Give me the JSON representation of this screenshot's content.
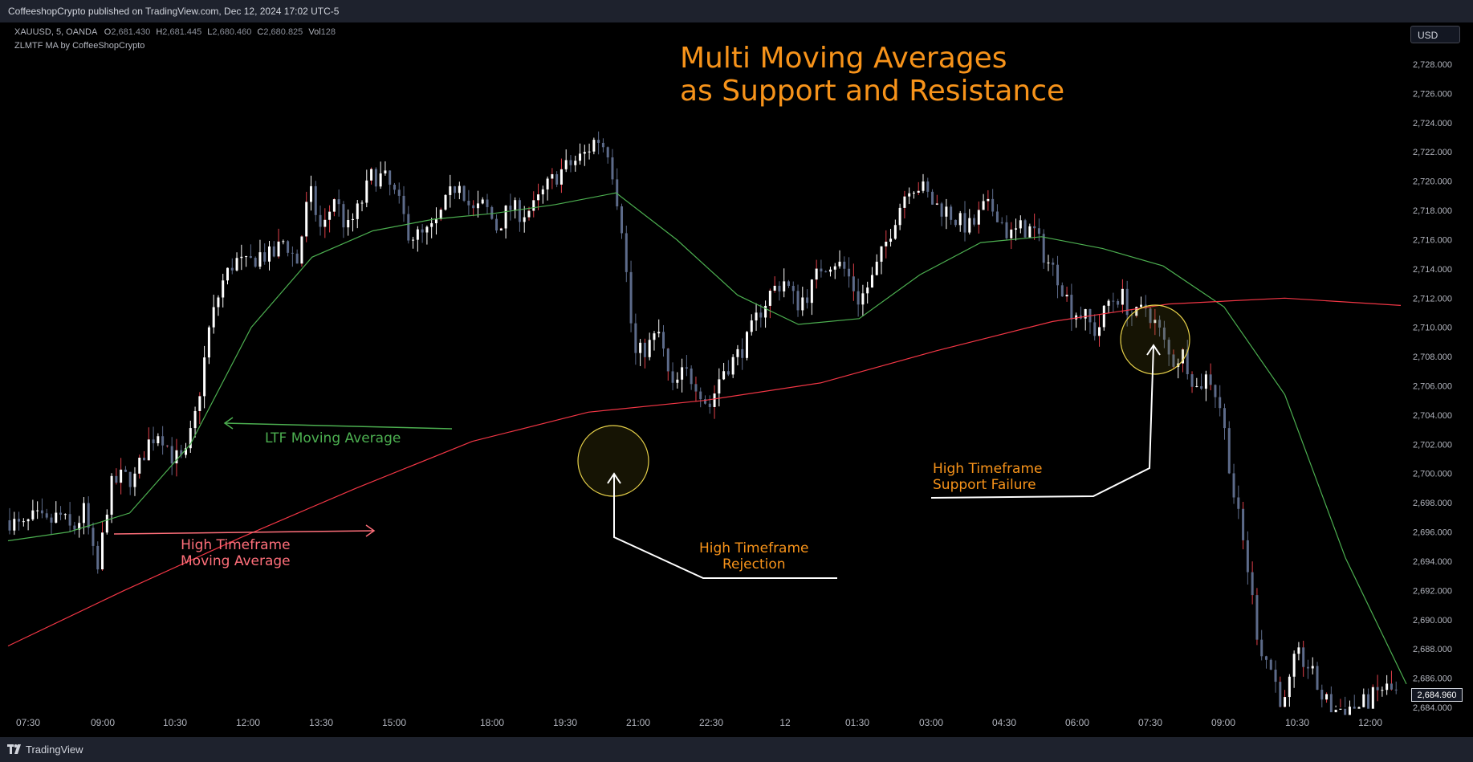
{
  "header": {
    "publisher": "CoffeeshopCrypto published on TradingView.com, Dec 12, 2024 17:02 UTC-5"
  },
  "legend": {
    "symbol": "XAUUSD, 5, OANDA",
    "o_label": "O",
    "o": "2,681.430",
    "h_label": "H",
    "h": "2,681.445",
    "l_label": "L",
    "l": "2,680.460",
    "c_label": "C",
    "c": "2,680.825",
    "vol_label": "Vol",
    "vol": "128",
    "indicator": "ZLMTF MA by CoffeeShopCrypto"
  },
  "currency": "USD",
  "footer": {
    "brand": "TradingView"
  },
  "colors": {
    "background": "#000000",
    "up": "#ffffff",
    "down": "#5d6b8a",
    "ltf_ma": "#4caf50",
    "htf_ma": "#f23645",
    "accent": "#f7931a"
  },
  "annotations": {
    "title_line1": "Multi Moving Averages",
    "title_line2": "as Support and Resistance",
    "ltf_label": "LTF Moving Average",
    "htf_line1": "High Timeframe",
    "htf_line2": "Moving Average",
    "rej_line1": "High Timeframe",
    "rej_line2": "Rejection",
    "fail_line1": "High Timeframe",
    "fail_line2": "Support Failure"
  },
  "chart_data": {
    "type": "candlestick",
    "symbol": "XAUUSD",
    "timeframe": "5",
    "xtick_labels": [
      "07:30",
      "09:00",
      "10:30",
      "12:00",
      "13:30",
      "15:00",
      "18:00",
      "19:30",
      "21:00",
      "22:30",
      "12",
      "01:30",
      "03:00",
      "04:30",
      "06:00",
      "07:30",
      "09:00",
      "10:30",
      "12:00"
    ],
    "ytick_labels": [
      "2,684.000",
      "2,686.000",
      "2,688.000",
      "2,690.000",
      "2,692.000",
      "2,694.000",
      "2,696.000",
      "2,698.000",
      "2,700.000",
      "2,702.000",
      "2,704.000",
      "2,706.000",
      "2,708.000",
      "2,710.000",
      "2,712.000",
      "2,714.000",
      "2,716.000",
      "2,718.000",
      "2,720.000",
      "2,722.000",
      "2,724.000",
      "2,726.000",
      "2,728.000"
    ],
    "yticks": [
      2684,
      2686,
      2688,
      2690,
      2692,
      2694,
      2696,
      2698,
      2700,
      2702,
      2704,
      2706,
      2708,
      2710,
      2712,
      2714,
      2716,
      2718,
      2720,
      2722,
      2724,
      2726,
      2728
    ],
    "ylim": [
      2683.7,
      2729.8
    ],
    "last_price": "2,684.960",
    "price_path": [
      2696.8,
      2696.2,
      2697.0,
      2696.5,
      2697.2,
      2696.0,
      2697.5,
      2693.0,
      2699.0,
      2699.8,
      2699.6,
      2702.0,
      2703.0,
      2701.2,
      2700.8,
      2704.5,
      2710.0,
      2713.0,
      2714.6,
      2714.2,
      2715.0,
      2714.8,
      2716.0,
      2714.4,
      2719.4,
      2716.4,
      2719.0,
      2716.6,
      2718.2,
      2720.4,
      2720.2,
      2718.8,
      2716.4,
      2716.2,
      2716.8,
      2718.6,
      2720.2,
      2717.8,
      2718.4,
      2716.8,
      2718.2,
      2717.8,
      2718.2,
      2719.6,
      2720.6,
      2721.2,
      2721.8,
      2723.0,
      2722.0,
      2717.0,
      2708.0,
      2708.6,
      2709.6,
      2705.6,
      2707.0,
      2706.2,
      2704.5,
      2707.0,
      2707.8,
      2709.0,
      2711.0,
      2712.5,
      2713.2,
      2711.6,
      2712.4,
      2714.2,
      2714.6,
      2713.8,
      2711.8,
      2713.2,
      2715.4,
      2717.8,
      2719.8,
      2719.6,
      2718.4,
      2718.0,
      2717.2,
      2716.8,
      2718.2,
      2718.0,
      2716.2,
      2716.8,
      2716.6,
      2714.6,
      2713.4,
      2711.2,
      2710.8,
      2709.6,
      2711.8,
      2712.2,
      2710.6,
      2711.4,
      2709.8,
      2707.6,
      2708.2,
      2705.8,
      2706.8,
      2704.4,
      2698.6,
      2694.2,
      2688.4,
      2686.6,
      2683.9,
      2687.6,
      2686.8,
      2684.8,
      2683.8,
      2684.0,
      2684.0,
      2684.6,
      2685.4,
      2684.96
    ],
    "series": [
      {
        "name": "LTF Moving Average",
        "values": [
          2695.4,
          2696.0,
          2697.3,
          2702.0,
          2710.0,
          2714.8,
          2716.6,
          2717.4,
          2717.8,
          2718.4,
          2719.2,
          2716.0,
          2712.2,
          2710.2,
          2710.6,
          2713.6,
          2715.8,
          2716.2,
          2715.4,
          2714.2,
          2711.4,
          2705.4,
          2694.2,
          2685.6
        ]
      },
      {
        "name": "High Timeframe Moving Average",
        "values": [
          2688.2,
          2692.0,
          2695.6,
          2699.0,
          2702.2,
          2704.2,
          2705.0,
          2706.2,
          2708.4,
          2710.4,
          2711.6,
          2712.0,
          2711.5
        ]
      }
    ],
    "grid": false,
    "legend": "top-left"
  }
}
